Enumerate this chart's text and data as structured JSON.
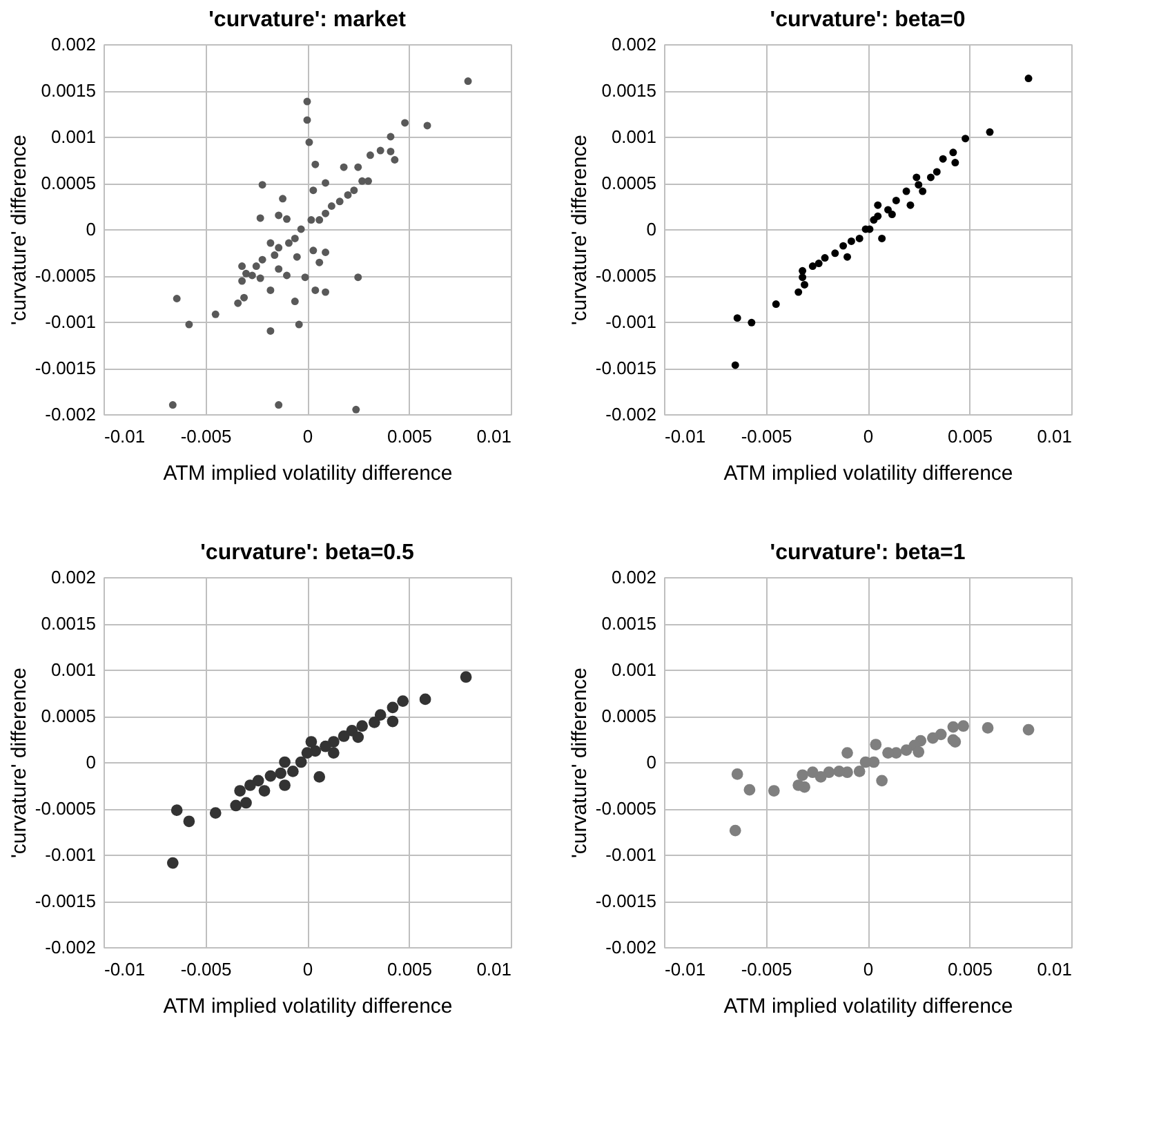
{
  "chart_data": [
    {
      "type": "scatter",
      "title": "'curvature': market",
      "xlabel": "ATM implied volatility difference",
      "ylabel": "'curvature' difference",
      "color": "#595959",
      "grid": true,
      "xlim": [
        -0.01,
        0.01
      ],
      "ylim": [
        -0.002,
        0.002
      ],
      "xticks": [
        -0.01,
        -0.005,
        0,
        0.005,
        0.01
      ],
      "yticks": [
        -0.002,
        -0.0015,
        -0.001,
        -0.0005,
        0,
        0.0005,
        0.001,
        0.0015,
        0.002
      ],
      "x": [
        0.0079,
        0,
        0,
        0.0001,
        0.0048,
        0.0059,
        0.0041,
        0.0043,
        0.0041,
        0.0036,
        0.0031,
        0.0004,
        -0.0022,
        -0.0012,
        -0.0023,
        -0.0014,
        -0.001,
        0.0009,
        0.0003,
        0.0018,
        0.0025,
        0.0027,
        0.003,
        0.0023,
        0.002,
        0.0016,
        0.0012,
        0.0009,
        0.0006,
        0.0002,
        -0.0003,
        -0.0006,
        -0.0009,
        -0.0014,
        -0.0018,
        -0.0016,
        -0.0022,
        -0.0025,
        -0.0027,
        -0.0032,
        -0.0032,
        -0.003,
        -0.0023,
        -0.0014,
        -0.001,
        -0.0005,
        0.0003,
        0.0009,
        0.0006,
        -0.0001,
        0.0004,
        0.0009,
        0.0025,
        -0.0018,
        -0.0006,
        -0.0004,
        -0.0018,
        -0.0034,
        -0.0031,
        -0.0045,
        -0.0064,
        -0.0058,
        -0.0066,
        -0.0014,
        0.0024
      ],
      "values": [
        0.0016,
        0.00138,
        0.00118,
        0.00094,
        0.00115,
        0.00112,
        0.001,
        0.00075,
        0.00084,
        0.00085,
        0.0008,
        0.0007,
        0.00048,
        0.00033,
        0.00012,
        0.00015,
        0.00011,
        0.0005,
        0.00042,
        0.00067,
        0.00067,
        0.00052,
        0.00052,
        0.00042,
        0.00037,
        0.0003,
        0.00025,
        0.00017,
        0.0001,
        0.0001,
        0,
        -0.0001,
        -0.00015,
        -0.0002,
        -0.00015,
        -0.00028,
        -0.00033,
        -0.0004,
        -0.0005,
        -0.0004,
        -0.00056,
        -0.00048,
        -0.00053,
        -0.00043,
        -0.0005,
        -0.0003,
        -0.00023,
        -0.00025,
        -0.00036,
        -0.00052,
        -0.00066,
        -0.00068,
        -0.00052,
        -0.00066,
        -0.00078,
        -0.00103,
        -0.0011,
        -0.0008,
        -0.00074,
        -0.00092,
        -0.00075,
        -0.00103,
        -0.0019,
        -0.0019,
        -0.00195
      ]
    },
    {
      "type": "scatter",
      "title": "'curvature': beta=0",
      "xlabel": "ATM implied volatility difference",
      "ylabel": "'curvature' difference",
      "color": "#000000",
      "grid": true,
      "xlim": [
        -0.01,
        0.01
      ],
      "ylim": [
        -0.002,
        0.002
      ],
      "xticks": [
        -0.01,
        -0.005,
        0,
        0.005,
        0.01
      ],
      "yticks": [
        -0.002,
        -0.0015,
        -0.001,
        -0.0005,
        0,
        0.0005,
        0.001,
        0.0015,
        0.002
      ],
      "x": [
        0.0079,
        0.006,
        0.0048,
        0.0042,
        0.0037,
        0.0043,
        0.0034,
        0.0031,
        0.0024,
        0.0025,
        0.0019,
        0.0014,
        0.001,
        0.0005,
        0.0005,
        0.0003,
        0.0001,
        -0.0001,
        -0.0004,
        -0.0008,
        -0.0012,
        -0.001,
        -0.0016,
        -0.0021,
        -0.0024,
        -0.0027,
        -0.0032,
        -0.0032,
        -0.0031,
        -0.0034,
        0.0007,
        0.0012,
        0.0021,
        0.0027,
        -0.0045,
        -0.0064,
        -0.0057,
        -0.0065
      ],
      "values": [
        0.00163,
        0.00105,
        0.00098,
        0.00083,
        0.00076,
        0.00072,
        0.00062,
        0.00056,
        0.00056,
        0.00048,
        0.00041,
        0.00031,
        0.00021,
        0.00026,
        0.00014,
        0.0001,
        0,
        0,
        -0.0001,
        -0.00013,
        -0.00018,
        -0.0003,
        -0.00026,
        -0.00031,
        -0.00037,
        -0.0004,
        -0.00045,
        -0.00052,
        -0.0006,
        -0.00068,
        -0.0001,
        0.00016,
        0.00026,
        0.00041,
        -0.00081,
        -0.00096,
        -0.00101,
        -0.00147
      ]
    },
    {
      "type": "scatter",
      "title": "'curvature': beta=0.5",
      "xlabel": "ATM implied volatility difference",
      "ylabel": "'curvature' difference",
      "color": "#333333",
      "grid": true,
      "xlim": [
        -0.01,
        0.01
      ],
      "ylim": [
        -0.002,
        0.002
      ],
      "xticks": [
        -0.01,
        -0.005,
        0,
        0.005,
        0.01
      ],
      "yticks": [
        -0.002,
        -0.0015,
        -0.001,
        -0.0005,
        0,
        0.0005,
        0.001,
        0.0015,
        0.002
      ],
      "x": [
        0.0078,
        0.0058,
        0.0047,
        0.0042,
        0.0042,
        0.0036,
        0.0033,
        0.0027,
        0.0022,
        0.0018,
        0.0013,
        0.0009,
        0.0004,
        0.0002,
        0,
        -0.0003,
        -0.0007,
        -0.0011,
        -0.0011,
        -0.0013,
        -0.0018,
        -0.0021,
        -0.0024,
        -0.0028,
        -0.0033,
        -0.003,
        -0.0035,
        0.0006,
        0.0013,
        0.0025,
        -0.0045,
        -0.0064,
        -0.0058,
        -0.0066
      ],
      "values": [
        0.00092,
        0.00068,
        0.00066,
        0.00059,
        0.00044,
        0.00051,
        0.00043,
        0.00039,
        0.00034,
        0.00028,
        0.00022,
        0.00017,
        0.00012,
        0.00022,
        0.0001,
        0,
        -0.0001,
        0,
        -0.00025,
        -0.00012,
        -0.00015,
        -0.00031,
        -0.0002,
        -0.00025,
        -0.00031,
        -0.00044,
        -0.00047,
        -0.00016,
        0.0001,
        0.00027,
        -0.00055,
        -0.00052,
        -0.00064,
        -0.00109
      ]
    },
    {
      "type": "scatter",
      "title": "'curvature': beta=1",
      "xlabel": "ATM implied volatility difference",
      "ylabel": "'curvature' difference",
      "color": "#7f7f7f",
      "grid": true,
      "xlim": [
        -0.01,
        0.01
      ],
      "ylim": [
        -0.002,
        0.002
      ],
      "xticks": [
        -0.01,
        -0.005,
        0,
        0.005,
        0.01
      ],
      "yticks": [
        -0.002,
        -0.0015,
        -0.001,
        -0.0005,
        0,
        0.0005,
        0.001,
        0.0015,
        0.002
      ],
      "x": [
        0.0079,
        0.0059,
        0.0047,
        0.0042,
        0.0042,
        0.0043,
        0.0036,
        0.0032,
        0.0026,
        0.0023,
        0.0019,
        0.0014,
        0.001,
        0.0004,
        0.0003,
        -0.0001,
        -0.0004,
        -0.001,
        -0.001,
        -0.0014,
        -0.0019,
        -0.0023,
        -0.0027,
        -0.0032,
        -0.0031,
        -0.0034,
        0.0007,
        0.0025,
        -0.0046,
        -0.0058,
        -0.0064,
        -0.0065
      ],
      "values": [
        0.00035,
        0.00037,
        0.00039,
        0.00038,
        0.00024,
        0.00022,
        0.0003,
        0.00026,
        0.00023,
        0.00018,
        0.00013,
        0.0001,
        0.0001,
        0.00019,
        0,
        0,
        -0.0001,
        0.0001,
        -0.00011,
        -0.0001,
        -0.00011,
        -0.00016,
        -0.00011,
        -0.00014,
        -0.00027,
        -0.00025,
        -0.0002,
        0.00011,
        -0.00031,
        -0.0003,
        -0.00013,
        -0.00074
      ]
    }
  ]
}
